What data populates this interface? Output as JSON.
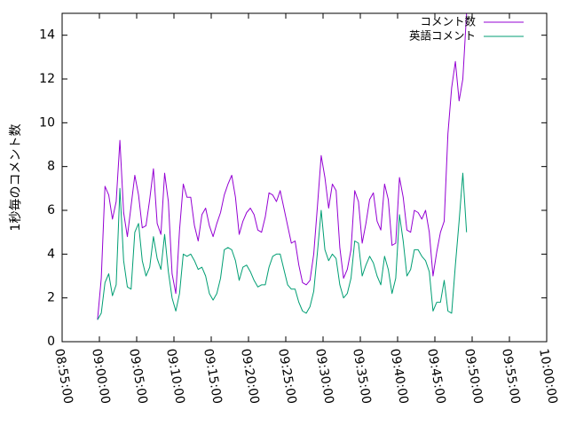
{
  "chart_data": {
    "type": "line",
    "title": "",
    "xlabel": "",
    "ylabel": "1秒毎のコメント数",
    "x_range": [
      "08:55:00",
      "10:00:00"
    ],
    "ylim": [
      0,
      15
    ],
    "y_ticks": [
      "0",
      "2",
      "4",
      "6",
      "8",
      "10",
      "12",
      "14"
    ],
    "x_ticks": [
      "08:55:00",
      "09:00:00",
      "09:05:00",
      "09:10:00",
      "09:15:00",
      "09:20:00",
      "09:25:00",
      "09:30:00",
      "09:35:00",
      "09:40:00",
      "09:45:00",
      "09:50:00",
      "09:55:00",
      "10:00:00"
    ],
    "grid": false,
    "legend_position": "top-right",
    "x_start": "08:59:45",
    "x_step_seconds": 30,
    "series": [
      {
        "name": "コメント数",
        "color": "#9400d3",
        "values": [
          1.0,
          2.9,
          7.1,
          6.7,
          5.6,
          6.4,
          9.2,
          5.9,
          4.8,
          6.2,
          7.6,
          6.7,
          5.2,
          5.3,
          6.5,
          7.9,
          5.4,
          4.9,
          7.7,
          6.4,
          3.1,
          2.2,
          5.1,
          7.2,
          6.6,
          6.6,
          5.3,
          4.6,
          5.8,
          6.1,
          5.3,
          4.8,
          5.4,
          5.9,
          6.7,
          7.2,
          7.6,
          6.6,
          4.9,
          5.5,
          5.9,
          6.1,
          5.8,
          5.1,
          5.0,
          5.7,
          6.8,
          6.7,
          6.4,
          6.9,
          6.1,
          5.3,
          4.5,
          4.6,
          3.5,
          2.7,
          2.6,
          2.8,
          4.0,
          6.2,
          8.5,
          7.5,
          6.1,
          7.2,
          6.9,
          4.3,
          2.9,
          3.3,
          4.2,
          6.9,
          6.4,
          4.5,
          5.4,
          6.5,
          6.8,
          5.5,
          5.1,
          7.2,
          6.5,
          4.4,
          4.5,
          7.5,
          6.6,
          5.1,
          5.0,
          6.0,
          5.9,
          5.6,
          6.0,
          5.0,
          3.0,
          4.1,
          5.0,
          5.5,
          9.5,
          11.6,
          12.8,
          11.0,
          12.0,
          15.0
        ]
      },
      {
        "name": "英語コメント",
        "color": "#009e73",
        "values": [
          1.0,
          1.3,
          2.7,
          3.1,
          2.1,
          2.6,
          7.0,
          3.7,
          2.5,
          2.4,
          5.0,
          5.4,
          3.7,
          3.0,
          3.4,
          4.8,
          3.8,
          3.3,
          4.9,
          3.2,
          2.0,
          1.4,
          2.2,
          4.0,
          3.9,
          4.0,
          3.7,
          3.3,
          3.4,
          3.0,
          2.2,
          1.9,
          2.2,
          2.9,
          4.2,
          4.3,
          4.2,
          3.7,
          2.8,
          3.4,
          3.5,
          3.2,
          2.8,
          2.5,
          2.6,
          2.6,
          3.4,
          3.9,
          4.0,
          4.0,
          3.3,
          2.6,
          2.4,
          2.4,
          1.8,
          1.4,
          1.3,
          1.6,
          2.3,
          4.1,
          6.0,
          4.2,
          3.7,
          4.0,
          3.8,
          2.6,
          2.0,
          2.2,
          2.9,
          4.6,
          4.5,
          3.0,
          3.5,
          3.9,
          3.6,
          3.0,
          2.6,
          3.9,
          3.3,
          2.2,
          2.9,
          5.8,
          4.6,
          3.0,
          3.3,
          4.2,
          4.2,
          3.9,
          3.7,
          3.2,
          1.4,
          1.8,
          1.8,
          2.8,
          1.4,
          1.3,
          3.5,
          5.5,
          7.7,
          5.0
        ]
      }
    ]
  }
}
